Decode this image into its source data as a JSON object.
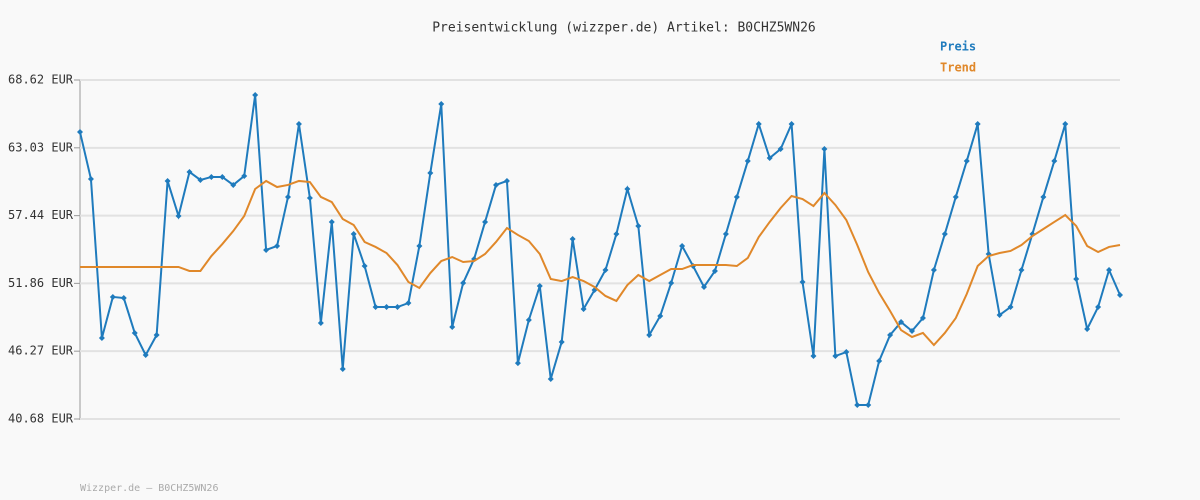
{
  "chart_data": {
    "type": "line",
    "title": "Preisentwicklung (wizzper.de) Artikel: B0CHZ5WN26",
    "footer": "Wizzper.de – B0CHZ5WN26",
    "ylim": [
      40.68,
      68.62
    ],
    "yticks": [
      {
        "value": 40.68,
        "label": "40.68 EUR"
      },
      {
        "value": 46.27,
        "label": "46.27 EUR"
      },
      {
        "value": 51.86,
        "label": "51.86 EUR"
      },
      {
        "value": 57.44,
        "label": "57.44 EUR"
      },
      {
        "value": 63.03,
        "label": "63.03 EUR"
      },
      {
        "value": 68.62,
        "label": "68.62 EUR"
      }
    ],
    "grid": true,
    "legend": "top-right",
    "series": [
      {
        "name": "Preis",
        "color": "#1f7bbd",
        "markers": true,
        "values": [
          64.33,
          60.46,
          47.36,
          50.74,
          50.65,
          47.77,
          45.95,
          47.6,
          60.3,
          57.41,
          61.04,
          60.38,
          60.63,
          60.63,
          59.97,
          60.71,
          67.38,
          54.61,
          54.94,
          58.98,
          64.99,
          58.89,
          48.59,
          56.92,
          44.8,
          55.93,
          53.29,
          49.91,
          49.91,
          49.91,
          50.24,
          54.94,
          60.96,
          66.64,
          48.26,
          51.89,
          53.87,
          56.92,
          59.97,
          60.3,
          45.29,
          48.84,
          51.64,
          43.98,
          47.03,
          55.52,
          49.75,
          51.31,
          52.96,
          55.93,
          59.64,
          56.59,
          47.6,
          49.17,
          51.89,
          54.94,
          53.29,
          51.56,
          52.88,
          55.93,
          58.98,
          61.94,
          64.99,
          62.19,
          62.93,
          64.99,
          51.97,
          45.87,
          62.93,
          45.87,
          46.2,
          41.83,
          41.83,
          45.46,
          47.6,
          48.67,
          47.93,
          49.0,
          52.96,
          55.93,
          58.98,
          61.94,
          64.99,
          54.28,
          49.25,
          49.91,
          52.96,
          55.93,
          58.98,
          61.94,
          64.99,
          52.22,
          48.1,
          49.91,
          52.96,
          50.9
        ]
      },
      {
        "name": "Trend",
        "color": "#e0882a",
        "markers": false,
        "values": [
          53.21,
          53.21,
          53.21,
          53.21,
          53.21,
          53.21,
          53.21,
          53.21,
          53.21,
          53.21,
          52.88,
          52.88,
          54.11,
          55.1,
          56.17,
          57.41,
          59.64,
          60.3,
          59.8,
          59.97,
          60.3,
          60.21,
          58.98,
          58.56,
          57.16,
          56.67,
          55.27,
          54.86,
          54.36,
          53.37,
          51.97,
          51.48,
          52.71,
          53.7,
          54.03,
          53.62,
          53.7,
          54.28,
          55.27,
          56.42,
          55.85,
          55.35,
          54.28,
          52.22,
          52.05,
          52.38,
          52.05,
          51.56,
          50.82,
          50.41,
          51.72,
          52.55,
          52.05,
          52.55,
          53.04,
          53.04,
          53.37,
          53.37,
          53.37,
          53.37,
          53.29,
          53.95,
          55.68,
          56.92,
          58.07,
          59.06,
          58.81,
          58.23,
          59.31,
          58.32,
          57.08,
          55.02,
          52.79,
          51.06,
          49.58,
          48.01,
          47.44,
          47.77,
          46.78,
          47.77,
          49.0,
          50.98,
          53.29,
          54.11,
          54.36,
          54.53,
          55.02,
          55.76,
          56.34,
          56.92,
          57.49,
          56.59,
          54.94,
          54.44,
          54.86,
          55.02
        ]
      }
    ]
  }
}
